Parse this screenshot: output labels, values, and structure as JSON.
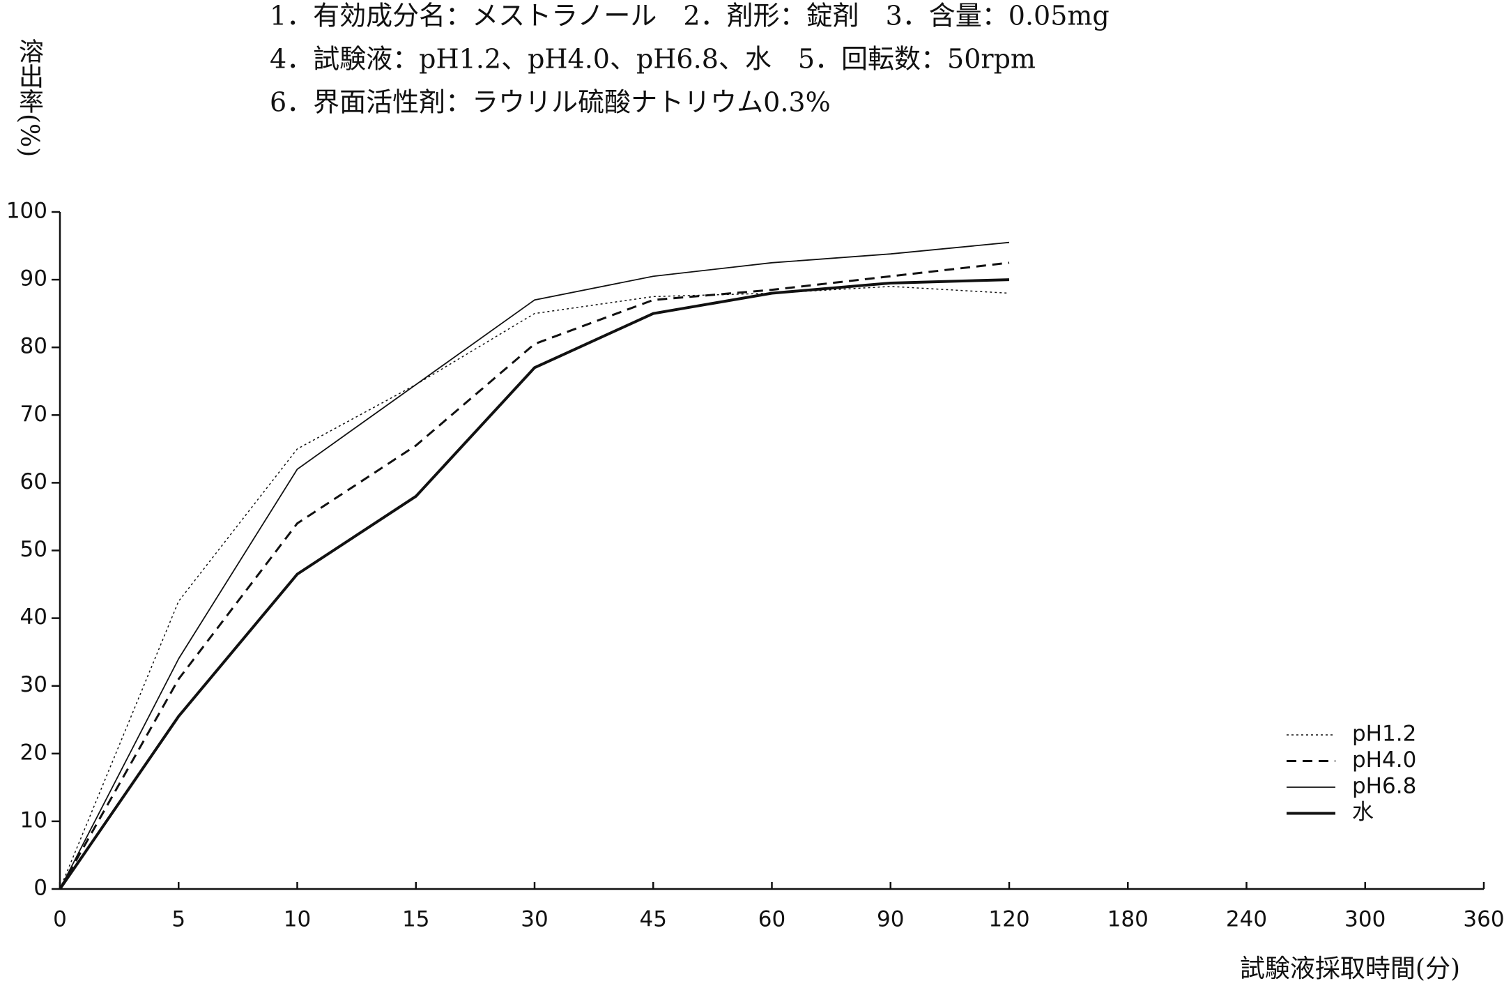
{
  "chart_data": {
    "type": "line",
    "title": [
      "1．有効成分名：メストラノール　2．剤形：錠剤　3．含量：0.05mg",
      "4．試験液：pH1.2、pH4.0、pH6.8、水　5．回転数：50rpm",
      "6．界面活性剤：ラウリル硫酸ナトリウム0.3%"
    ],
    "y_label": "溶出率(%)",
    "x_label": "試験液採取時間(分)",
    "categories": [
      "0",
      "5",
      "10",
      "15",
      "30",
      "45",
      "60",
      "90",
      "120",
      "180",
      "240",
      "300",
      "360"
    ],
    "ylim": [
      0,
      100
    ],
    "yticks": [
      0,
      10,
      20,
      30,
      40,
      50,
      60,
      70,
      80,
      90,
      100
    ],
    "legend": "lower right",
    "series": [
      {
        "name": "pH1.2",
        "color": "#111111",
        "style": "dotted",
        "width": 1.5,
        "values": [
          0,
          42.5,
          65,
          74.5,
          85,
          87.5,
          88,
          89,
          88,
          null,
          null,
          null,
          null
        ]
      },
      {
        "name": "pH4.0",
        "color": "#111111",
        "style": "dashed",
        "width": 3,
        "values": [
          0,
          31,
          54,
          65.5,
          80.5,
          87,
          88.5,
          90.5,
          92.5,
          null,
          null,
          null,
          null
        ]
      },
      {
        "name": "pH6.8",
        "color": "#111111",
        "style": "solid",
        "width": 1.8,
        "values": [
          0,
          34,
          62,
          74.5,
          87,
          90.5,
          92.5,
          93.8,
          95.5,
          null,
          null,
          null,
          null
        ]
      },
      {
        "name": "水",
        "color": "#111111",
        "style": "solid",
        "width": 4,
        "values": [
          0,
          25.5,
          46.5,
          58,
          77,
          85,
          88,
          89.5,
          90,
          null,
          null,
          null,
          null
        ]
      }
    ]
  }
}
